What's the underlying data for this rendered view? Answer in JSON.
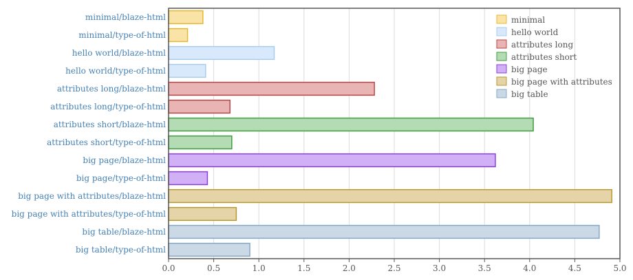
{
  "chart_data": {
    "type": "bar",
    "orientation": "horizontal",
    "categories": [
      "minimal/blaze-html",
      "minimal/type-of-html",
      "hello world/blaze-html",
      "hello world/type-of-html",
      "attributes long/blaze-html",
      "attributes long/type-of-html",
      "attributes short/blaze-html",
      "attributes short/type-of-html",
      "big page/blaze-html",
      "big page/type-of-html",
      "big page with attributes/blaze-html",
      "big page with attributes/type-of-html",
      "big table/blaze-html",
      "big table/type-of-html"
    ],
    "values": [
      0.38,
      0.21,
      1.17,
      0.41,
      2.28,
      0.68,
      4.04,
      0.7,
      3.62,
      0.43,
      4.91,
      0.75,
      4.77,
      0.9
    ],
    "bar_series_index": [
      0,
      0,
      1,
      1,
      2,
      2,
      3,
      3,
      4,
      4,
      5,
      5,
      6,
      6
    ],
    "series": [
      {
        "name": "minimal",
        "fill": "#f9e3a6",
        "stroke": "#e8b830"
      },
      {
        "name": "hello world",
        "fill": "#d8e9fb",
        "stroke": "#a8cdef"
      },
      {
        "name": "attributes long",
        "fill": "#e8b4b4",
        "stroke": "#c04444"
      },
      {
        "name": "attributes short",
        "fill": "#b4dcb4",
        "stroke": "#409c40"
      },
      {
        "name": "big page",
        "fill": "#d2b0f6",
        "stroke": "#8c3ee0"
      },
      {
        "name": "big page with attributes",
        "fill": "#e4d4a8",
        "stroke": "#b89830"
      },
      {
        "name": "big table",
        "fill": "#cbd9e6",
        "stroke": "#86a8c6"
      }
    ],
    "x_ticks": [
      "0.0",
      "0.5",
      "1.0",
      "1.5",
      "2.0",
      "2.5",
      "3.0",
      "3.5",
      "4.0",
      "4.5",
      "5.0"
    ],
    "xlim": [
      0,
      5
    ],
    "grid": "vertical",
    "legend_position": "top-right",
    "title": "",
    "xlabel": "",
    "ylabel": ""
  }
}
